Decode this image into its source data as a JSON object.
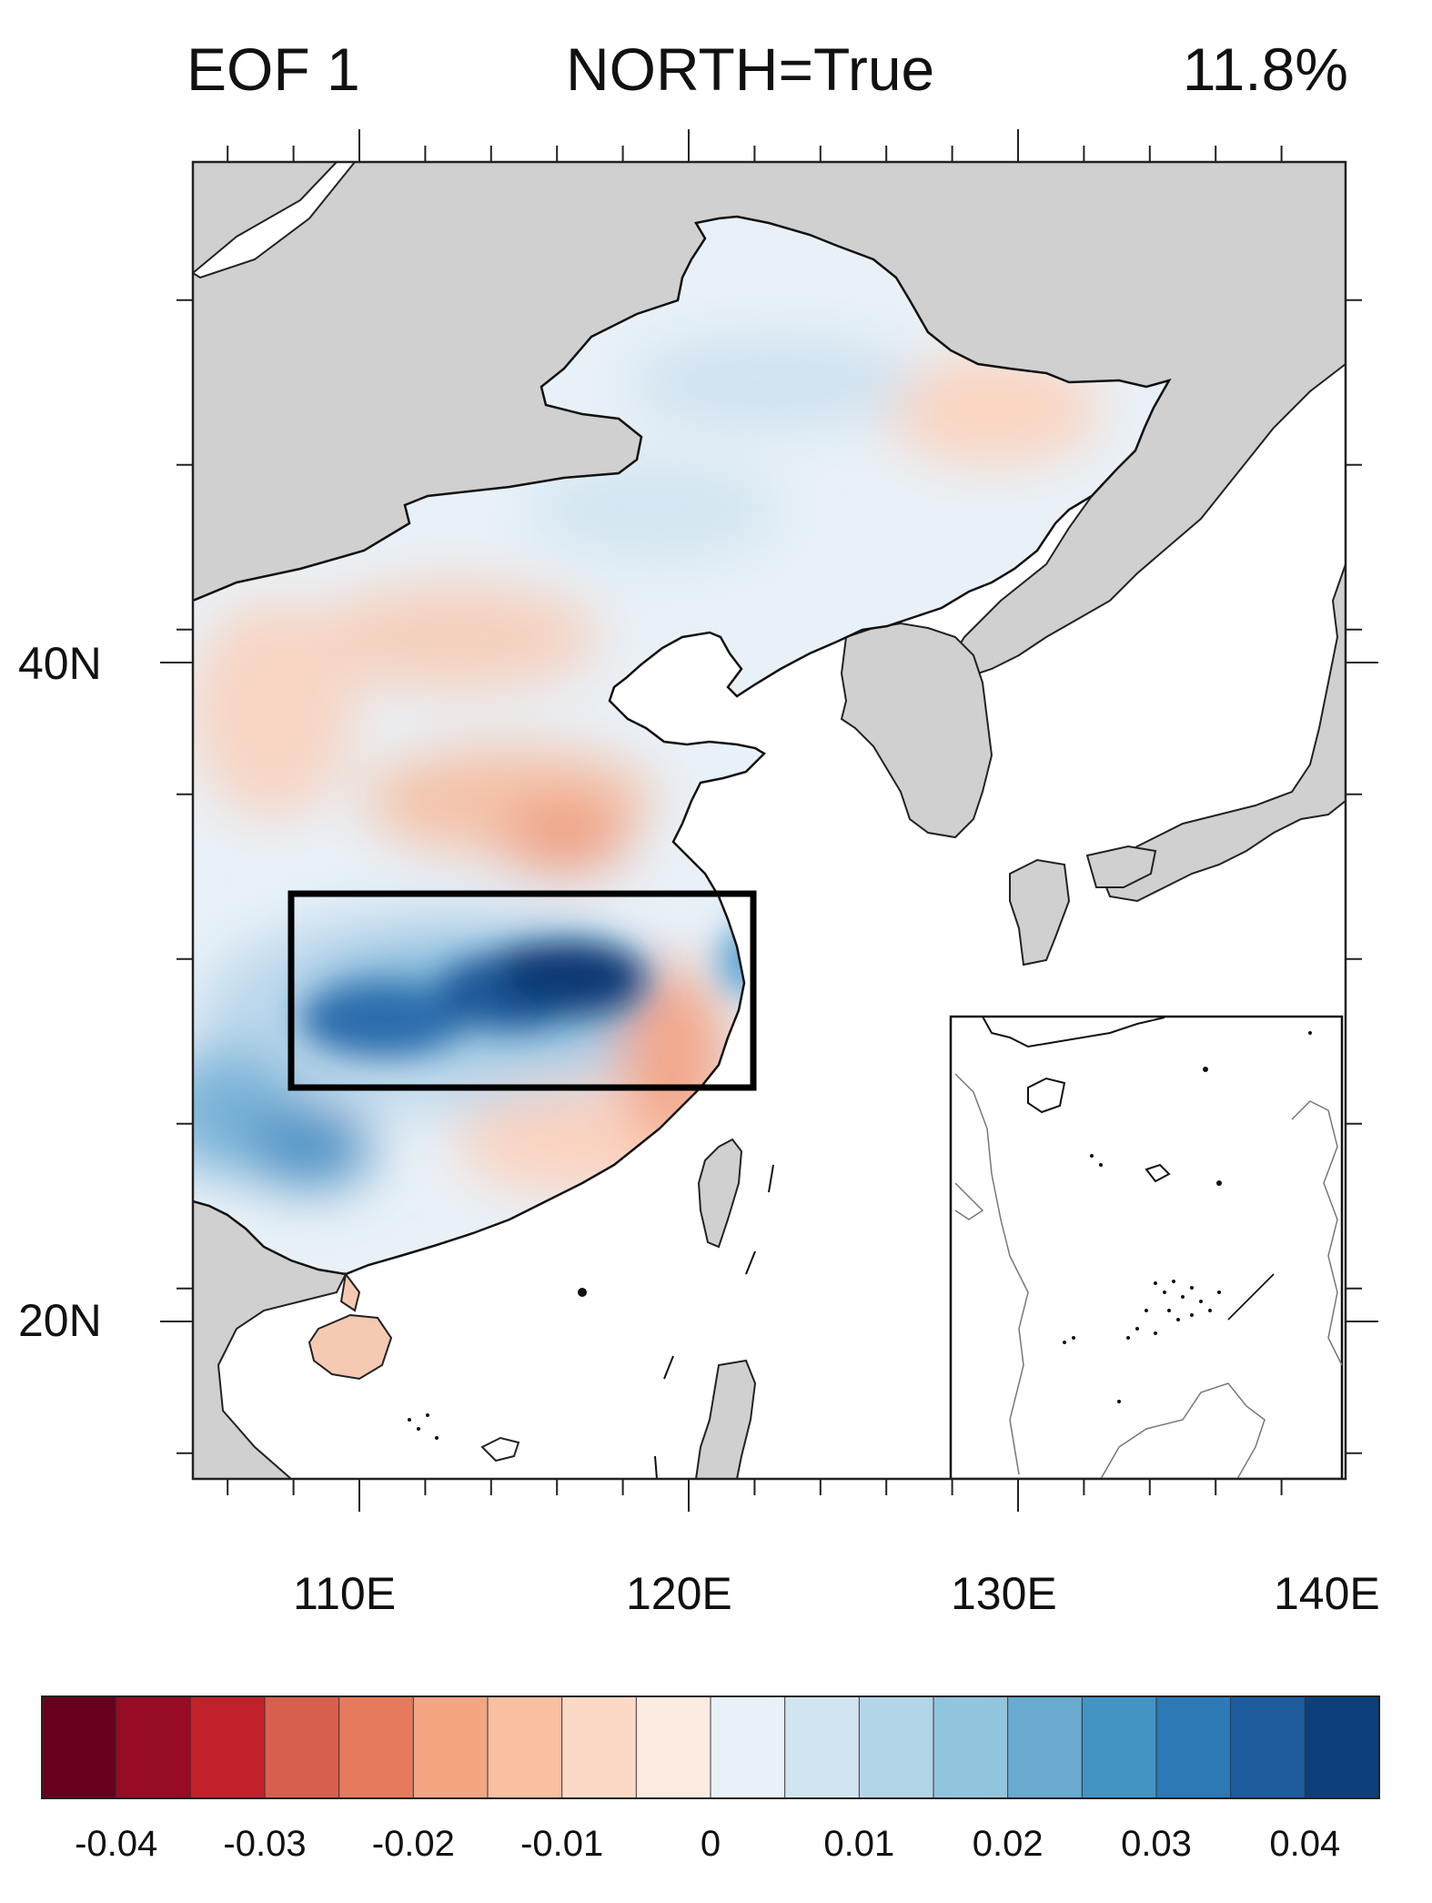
{
  "title": {
    "left": "EOF 1",
    "center": "NORTH=True",
    "right": "11.8%"
  },
  "axes": {
    "x_ticks": [
      "110E",
      "120E",
      "130E",
      "140E"
    ],
    "y_ticks": [
      "40N",
      "20N"
    ]
  },
  "map": {
    "type": "filled-contour-map",
    "region": "East Asia",
    "lon_range": [
      105,
      140
    ],
    "lat_range": [
      15,
      55
    ],
    "box": {
      "lon": [
        108,
        122
      ],
      "lat": [
        27,
        33
      ]
    },
    "inset": "South China Sea",
    "land_color": "#d0d0d0",
    "ocean_color": "#ffffff",
    "box_color": "#000000"
  },
  "colorbar": {
    "colors": [
      "#67001f",
      "#980b24",
      "#c2212c",
      "#d6604d",
      "#e57a5c",
      "#f4a582",
      "#f8bfa1",
      "#fbd9c6",
      "#fcebe0",
      "#e8f1f8",
      "#d1e5f0",
      "#b3d5e8",
      "#92c5de",
      "#6aa9d0",
      "#4393c3",
      "#2d79b5",
      "#1f5c9d",
      "#0d3f7a"
    ],
    "labels": [
      "-0.04",
      "-0.03",
      "-0.02",
      "-0.01",
      "0",
      "0.01",
      "0.02",
      "0.03",
      "0.04"
    ]
  }
}
